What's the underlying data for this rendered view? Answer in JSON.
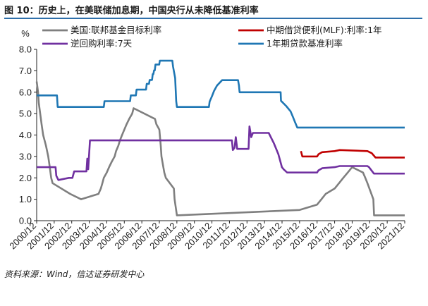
{
  "figure": {
    "title": "图 10：历史上，在美联储加息期，中国央行从未降低基准利率",
    "source": "资料来源：Wind，信达证券研发中心"
  },
  "colors": {
    "axis": "#222222",
    "us": "#7f7f7f",
    "mlf": "#c00000",
    "reverse_repo": "#7030a0",
    "lpr": "#1f77b4"
  },
  "chart_data": {
    "type": "line",
    "title": "",
    "ylabel": "%",
    "ylim": [
      0,
      8
    ],
    "y_ticks": [
      "0.0",
      "1.0",
      "2.0",
      "3.0",
      "4.0",
      "5.0",
      "6.0",
      "7.0",
      "8.0"
    ],
    "xlim": [
      2000.96,
      2021.96
    ],
    "x_ticks": [
      "2000/12",
      "2001/12",
      "2002/12",
      "2003/12",
      "2004/12",
      "2005/12",
      "2006/12",
      "2007/12",
      "2008/12",
      "2009/12",
      "2010/12",
      "2011/12",
      "2012/12",
      "2013/12",
      "2014/12",
      "2015/12",
      "2016/12",
      "2017/12",
      "2018/12",
      "2019/12",
      "2020/12",
      "2021/12"
    ],
    "legend_position": "top",
    "series": [
      {
        "name": "美国:联邦基金目标利率",
        "color_key": "us",
        "points": [
          [
            2000.96,
            6.5
          ],
          [
            2001.04,
            6.0
          ],
          [
            2001.08,
            5.5
          ],
          [
            2001.16,
            5.0
          ],
          [
            2001.24,
            4.5
          ],
          [
            2001.33,
            4.0
          ],
          [
            2001.41,
            3.75
          ],
          [
            2001.49,
            3.5
          ],
          [
            2001.62,
            3.0
          ],
          [
            2001.71,
            2.5
          ],
          [
            2001.79,
            2.0
          ],
          [
            2001.87,
            1.75
          ],
          [
            2002.87,
            1.25
          ],
          [
            2003.49,
            1.0
          ],
          [
            2004.49,
            1.25
          ],
          [
            2004.62,
            1.5
          ],
          [
            2004.71,
            1.75
          ],
          [
            2004.79,
            2.0
          ],
          [
            2004.96,
            2.25
          ],
          [
            2005.09,
            2.5
          ],
          [
            2005.24,
            2.75
          ],
          [
            2005.41,
            3.0
          ],
          [
            2005.49,
            3.25
          ],
          [
            2005.62,
            3.5
          ],
          [
            2005.71,
            3.75
          ],
          [
            2005.83,
            4.0
          ],
          [
            2005.96,
            4.25
          ],
          [
            2006.09,
            4.5
          ],
          [
            2006.24,
            4.75
          ],
          [
            2006.41,
            5.0
          ],
          [
            2006.49,
            5.25
          ],
          [
            2007.71,
            4.75
          ],
          [
            2007.79,
            4.5
          ],
          [
            2007.96,
            4.25
          ],
          [
            2008.04,
            3.5
          ],
          [
            2008.08,
            3.0
          ],
          [
            2008.24,
            2.25
          ],
          [
            2008.33,
            2.0
          ],
          [
            2008.79,
            1.5
          ],
          [
            2008.83,
            1.0
          ],
          [
            2008.96,
            0.25
          ],
          [
            2015.96,
            0.5
          ],
          [
            2016.96,
            0.75
          ],
          [
            2017.21,
            1.0
          ],
          [
            2017.45,
            1.25
          ],
          [
            2017.96,
            1.5
          ],
          [
            2018.21,
            1.75
          ],
          [
            2018.45,
            2.0
          ],
          [
            2018.71,
            2.25
          ],
          [
            2018.96,
            2.5
          ],
          [
            2019.58,
            2.25
          ],
          [
            2019.71,
            2.0
          ],
          [
            2019.83,
            1.75
          ],
          [
            2020.17,
            1.0
          ],
          [
            2020.21,
            0.25
          ],
          [
            2021.96,
            0.25
          ]
        ]
      },
      {
        "name": "中期借贷便利(MLF):利率:1年",
        "color_key": "mlf",
        "points": [
          [
            2016.04,
            3.25
          ],
          [
            2016.12,
            3.0
          ],
          [
            2016.96,
            3.0
          ],
          [
            2017.04,
            3.1
          ],
          [
            2017.25,
            3.2
          ],
          [
            2017.96,
            3.25
          ],
          [
            2018.25,
            3.3
          ],
          [
            2019.83,
            3.25
          ],
          [
            2020.08,
            3.15
          ],
          [
            2020.29,
            2.95
          ],
          [
            2021.96,
            2.95
          ]
        ]
      },
      {
        "name": "逆回购利率:7天",
        "color_key": "reverse_repo",
        "points": [
          [
            2000.96,
            2.5
          ],
          [
            2002.04,
            2.5
          ],
          [
            2002.08,
            2.1
          ],
          [
            2002.2,
            1.9
          ],
          [
            2002.8,
            2.0
          ],
          [
            2003.0,
            2.0
          ],
          [
            2003.1,
            2.3
          ],
          [
            2003.8,
            2.3
          ],
          [
            2003.85,
            2.9
          ],
          [
            2003.9,
            2.4
          ],
          [
            2004.0,
            3.75
          ],
          [
            2012.1,
            3.75
          ],
          [
            2012.15,
            3.3
          ],
          [
            2012.25,
            3.4
          ],
          [
            2012.32,
            3.9
          ],
          [
            2012.4,
            3.35
          ],
          [
            2013.05,
            3.35
          ],
          [
            2013.1,
            4.4
          ],
          [
            2013.2,
            3.9
          ],
          [
            2013.3,
            4.1
          ],
          [
            2014.2,
            4.1
          ],
          [
            2014.5,
            3.6
          ],
          [
            2014.75,
            3.1
          ],
          [
            2014.85,
            2.8
          ],
          [
            2014.95,
            2.5
          ],
          [
            2015.05,
            2.4
          ],
          [
            2015.25,
            2.25
          ],
          [
            2016.96,
            2.25
          ],
          [
            2017.04,
            2.35
          ],
          [
            2017.25,
            2.45
          ],
          [
            2017.96,
            2.5
          ],
          [
            2018.25,
            2.55
          ],
          [
            2019.83,
            2.55
          ],
          [
            2019.92,
            2.5
          ],
          [
            2020.2,
            2.2
          ],
          [
            2021.96,
            2.2
          ]
        ]
      },
      {
        "name": "1年期贷款基准利率",
        "color_key": "lpr",
        "points": [
          [
            2000.96,
            5.85
          ],
          [
            2002.12,
            5.85
          ],
          [
            2002.16,
            5.31
          ],
          [
            2004.79,
            5.31
          ],
          [
            2004.83,
            5.58
          ],
          [
            2006.29,
            5.58
          ],
          [
            2006.33,
            5.85
          ],
          [
            2006.62,
            5.85
          ],
          [
            2006.66,
            6.12
          ],
          [
            2007.2,
            6.12
          ],
          [
            2007.24,
            6.39
          ],
          [
            2007.37,
            6.39
          ],
          [
            2007.41,
            6.57
          ],
          [
            2007.54,
            6.57
          ],
          [
            2007.58,
            6.84
          ],
          [
            2007.62,
            6.84
          ],
          [
            2007.66,
            7.02
          ],
          [
            2007.7,
            7.02
          ],
          [
            2007.74,
            7.29
          ],
          [
            2007.95,
            7.29
          ],
          [
            2007.99,
            7.47
          ],
          [
            2008.7,
            7.47
          ],
          [
            2008.74,
            7.2
          ],
          [
            2008.8,
            6.93
          ],
          [
            2008.86,
            6.66
          ],
          [
            2008.92,
            5.58
          ],
          [
            2008.96,
            5.31
          ],
          [
            2010.79,
            5.31
          ],
          [
            2010.83,
            5.56
          ],
          [
            2010.96,
            5.81
          ],
          [
            2011.08,
            6.06
          ],
          [
            2011.25,
            6.31
          ],
          [
            2011.54,
            6.56
          ],
          [
            2012.45,
            6.56
          ],
          [
            2012.5,
            6.31
          ],
          [
            2012.54,
            6.0
          ],
          [
            2014.88,
            6.0
          ],
          [
            2014.9,
            5.6
          ],
          [
            2015.2,
            5.35
          ],
          [
            2015.45,
            5.1
          ],
          [
            2015.58,
            4.85
          ],
          [
            2015.7,
            4.6
          ],
          [
            2015.83,
            4.35
          ],
          [
            2021.96,
            4.35
          ]
        ]
      }
    ]
  }
}
